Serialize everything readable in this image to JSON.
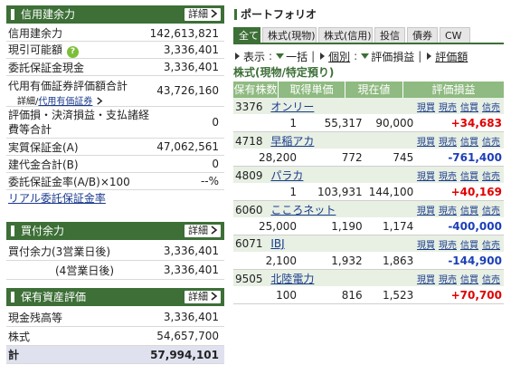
{
  "credit": {
    "title": "信用建余力",
    "detail_label": "詳細",
    "rows": [
      {
        "label": "信用建余力",
        "value": "142,613,821"
      },
      {
        "label": "現引可能額",
        "value": "3,336,401"
      },
      {
        "label": "委託保証金現金",
        "value": "3,336,401"
      },
      {
        "label": "代用有価証券評価額合計",
        "value": "43,726,160"
      },
      {
        "label": "評価損・決済損益・支払諸経費等合計",
        "value": "0"
      },
      {
        "label": "実質保証金(A)",
        "value": "47,062,561"
      },
      {
        "label": "建代金合計(B)",
        "value": "0"
      },
      {
        "label": "委託保証金率(A/B)×100",
        "value": "--%"
      }
    ],
    "sub_links": {
      "detail": "詳細",
      "separator": "/",
      "daiyou": "代用有価証券"
    },
    "margin_label_line1": "評価損・決済損益・支払諸経",
    "margin_label_line2": "費等合計",
    "real_link": "リアル委託保証金率"
  },
  "buying": {
    "title": "買付余力",
    "detail_label": "詳細",
    "rows": [
      {
        "label": "買付余力(3営業日後)",
        "value": "3,336,401"
      },
      {
        "label": "(4営業日後)",
        "value": "3,336,401"
      }
    ]
  },
  "assets": {
    "title": "保有資産評価",
    "detail_label": "詳細",
    "rows": [
      {
        "label": "現金残高等",
        "value": "3,336,401"
      },
      {
        "label": "株式",
        "value": "54,657,700"
      }
    ],
    "total": {
      "label": "計",
      "value": "57,994,101"
    }
  },
  "portfolio": {
    "title": "ポートフォリオ",
    "tabs": [
      "全て",
      "株式(現物)",
      "株式(信用)",
      "投信",
      "債券",
      "CW"
    ],
    "active_tab": 0,
    "controls": {
      "display": "表示",
      "all_at_once": "一括",
      "individual": "個別",
      "pl": "評価損益",
      "pl_amount": "評価額"
    },
    "section_title": "株式(現物/特定預り)",
    "headers": [
      "保有株数",
      "取得単価",
      "現在値",
      "評価損益"
    ],
    "actions": [
      "現買",
      "現売",
      "信買",
      "信売"
    ],
    "stocks": [
      {
        "code": "3376",
        "name": "オンリー",
        "qty": "1",
        "cost": "55,317",
        "price": "90,000",
        "pl": "+34,683",
        "sign": "pos"
      },
      {
        "code": "4718",
        "name": "早稲アカ",
        "qty": "28,200",
        "cost": "772",
        "price": "745",
        "pl": "-761,400",
        "sign": "neg"
      },
      {
        "code": "4809",
        "name": "パラカ",
        "qty": "1",
        "cost": "103,931",
        "price": "144,100",
        "pl": "+40,169",
        "sign": "pos"
      },
      {
        "code": "6060",
        "name": "こころネット",
        "qty": "25,000",
        "cost": "1,190",
        "price": "1,174",
        "pl": "-400,000",
        "sign": "neg"
      },
      {
        "code": "6071",
        "name": "IBJ",
        "qty": "2,100",
        "cost": "1,932",
        "price": "1,863",
        "pl": "-144,900",
        "sign": "neg"
      },
      {
        "code": "9505",
        "name": "北陸電力",
        "qty": "100",
        "cost": "816",
        "price": "1,523",
        "pl": "+70,700",
        "sign": "pos"
      }
    ]
  },
  "colors": {
    "accent": "#3d6f37",
    "header_bg": "#8fba81",
    "positive": "#e00000",
    "negative": "#1c3fb7",
    "link": "#1a3a8c"
  }
}
